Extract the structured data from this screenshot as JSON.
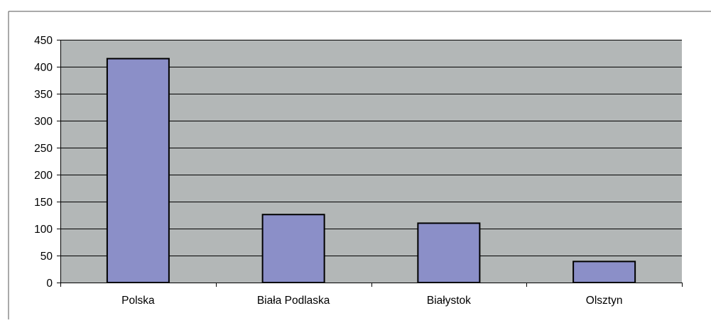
{
  "chart_data": {
    "type": "bar",
    "categories": [
      "Polska",
      "Biała Podlaska",
      "Białystok",
      "Olsztyn"
    ],
    "values": [
      415,
      126,
      110,
      39
    ],
    "title": "",
    "xlabel": "",
    "ylabel": "",
    "ylim": [
      0,
      450
    ],
    "yticks": [
      "0",
      "50",
      "100",
      "150",
      "200",
      "250",
      "300",
      "350",
      "400",
      "450"
    ],
    "grid": true,
    "legend": "none",
    "colors": {
      "plot_background": "#b3b7b7",
      "bar_fill": "#8b8fc8",
      "bar_stroke": "#000000",
      "gridline": "#000000",
      "frame": "#555555"
    }
  }
}
